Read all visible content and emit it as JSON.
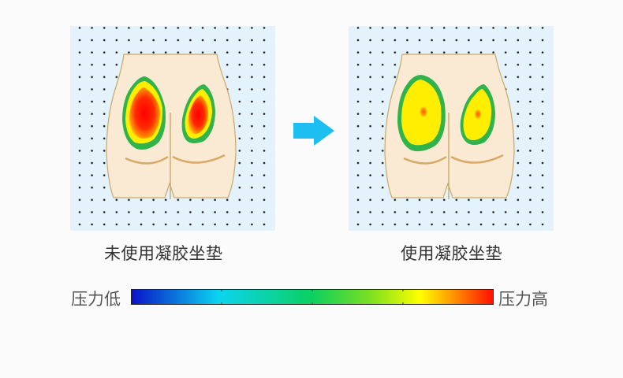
{
  "captions": {
    "before": "未使用凝胶坐垫",
    "after": "使用凝胶坐垫"
  },
  "scale": {
    "low_label": "压力低",
    "high_label": "压力高",
    "colors": [
      "#0a13c8",
      "#0bd4f0",
      "#0bd060",
      "#7be020",
      "#ffff00",
      "#ff1000"
    ]
  },
  "colors": {
    "panel_background": "#e4f3fb",
    "body_fill": "#fbead3",
    "body_outline": "#c8a86a",
    "arrow": "#1cbff0"
  }
}
